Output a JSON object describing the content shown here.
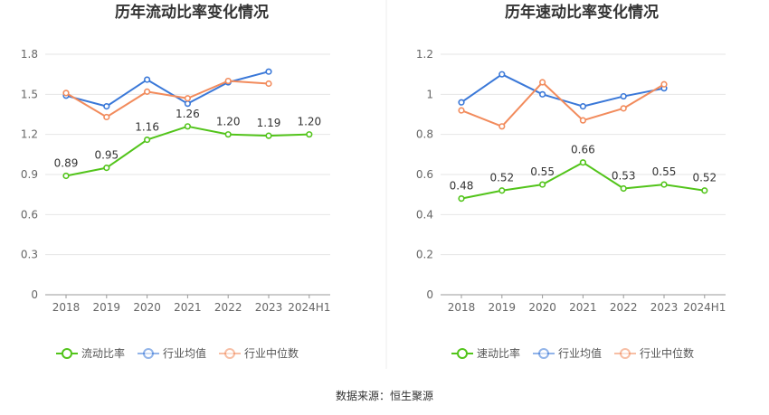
{
  "source": "数据来源：恒生聚源",
  "chart_data": [
    {
      "type": "line",
      "title": "历年流动比率变化情况",
      "categories": [
        "2018",
        "2019",
        "2020",
        "2021",
        "2022",
        "2023",
        "2024H1"
      ],
      "ylim": [
        0,
        1.8
      ],
      "yticks": [
        "0",
        "0.3",
        "0.6",
        "0.9",
        "1.2",
        "1.5",
        "1.8"
      ],
      "grid": true,
      "legend_position": "bottom",
      "series": [
        {
          "name": "流动比率",
          "color": "#52c41a",
          "values": [
            0.89,
            0.95,
            1.16,
            1.26,
            1.2,
            1.19,
            1.2
          ],
          "labels": [
            "0.89",
            "0.95",
            "1.16",
            "1.26",
            "1.20",
            "1.19",
            "1.20"
          ]
        },
        {
          "name": "行业均值",
          "color": "#3a78d8",
          "values": [
            1.49,
            1.41,
            1.61,
            1.43,
            1.59,
            1.67,
            null
          ]
        },
        {
          "name": "行业中位数",
          "color": "#f28b5c",
          "values": [
            1.51,
            1.33,
            1.52,
            1.47,
            1.6,
            1.58,
            null
          ]
        }
      ]
    },
    {
      "type": "line",
      "title": "历年速动比率变化情况",
      "categories": [
        "2018",
        "2019",
        "2020",
        "2021",
        "2022",
        "2023",
        "2024H1"
      ],
      "ylim": [
        0,
        1.2
      ],
      "yticks": [
        "0",
        "0.2",
        "0.4",
        "0.6",
        "0.8",
        "1",
        "1.2"
      ],
      "grid": true,
      "legend_position": "bottom",
      "series": [
        {
          "name": "速动比率",
          "color": "#52c41a",
          "values": [
            0.48,
            0.52,
            0.55,
            0.66,
            0.53,
            0.55,
            0.52
          ],
          "labels": [
            "0.48",
            "0.52",
            "0.55",
            "0.66",
            "0.53",
            "0.55",
            "0.52"
          ]
        },
        {
          "name": "行业均值",
          "color": "#3a78d8",
          "values": [
            0.96,
            1.1,
            1.0,
            0.94,
            0.99,
            1.03,
            null
          ]
        },
        {
          "name": "行业中位数",
          "color": "#f28b5c",
          "values": [
            0.92,
            0.84,
            1.06,
            0.87,
            0.93,
            1.05,
            null
          ]
        }
      ]
    }
  ]
}
